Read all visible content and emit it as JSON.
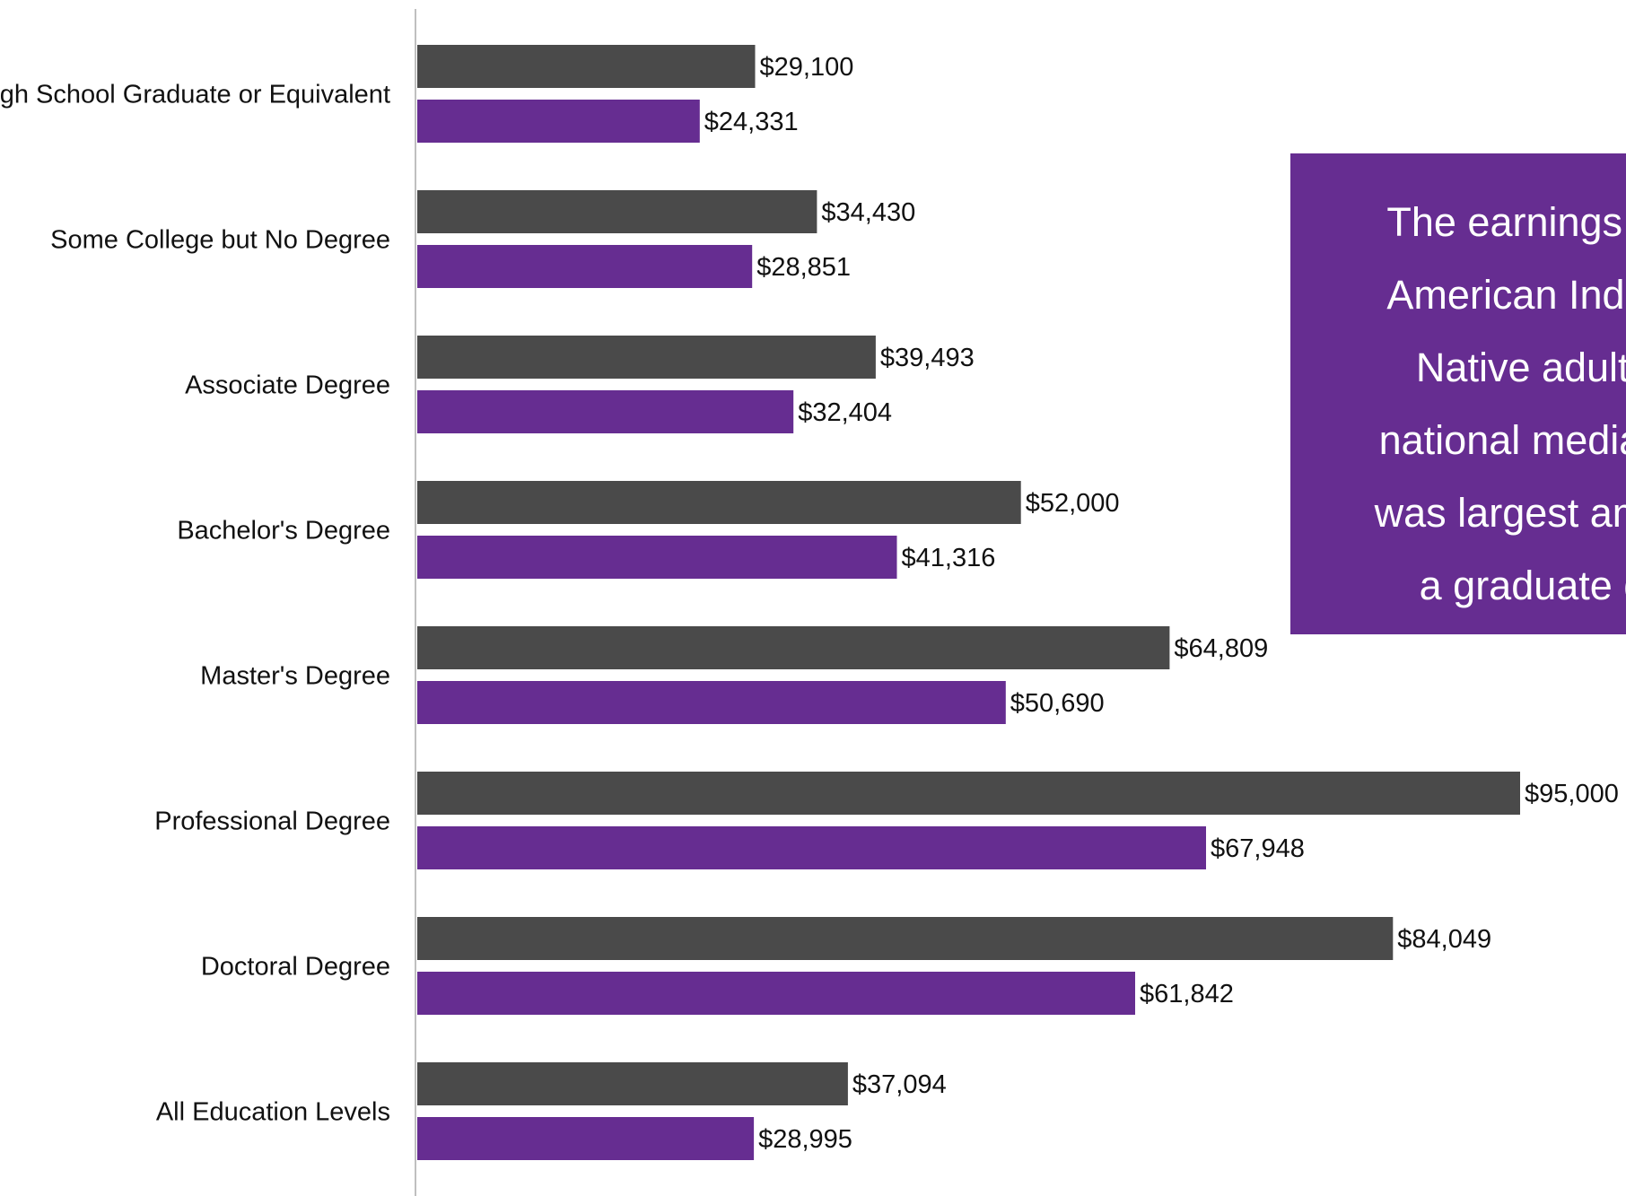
{
  "colors": {
    "series_national": "#4a4a4a",
    "series_aian": "#662d91",
    "axis": "#bfbfbf",
    "callout_bg": "#662d91",
    "callout_text": "#ffffff"
  },
  "chart_data": {
    "type": "bar",
    "orientation": "horizontal",
    "categories": [
      "High School Graduate or Equivalent",
      "Some College but No Degree",
      "Associate Degree",
      "Bachelor's Degree",
      "Master's Degree",
      "Professional Degree",
      "Doctoral Degree",
      "All Education Levels"
    ],
    "series": [
      {
        "values": [
          29100,
          34430,
          39493,
          52000,
          64809,
          95000,
          84049,
          37094
        ],
        "labels": [
          "$29,100",
          "$34,430",
          "$39,493",
          "$52,000",
          "$64,809",
          "$95,000",
          "$84,049",
          "$37,094"
        ]
      },
      {
        "values": [
          24331,
          28851,
          32404,
          41316,
          50690,
          67948,
          61842,
          28995
        ],
        "labels": [
          "$24,331",
          "$28,851",
          "$32,404",
          "$41,316",
          "$50,690",
          "$67,948",
          "$61,842",
          "$28,995"
        ]
      }
    ],
    "xlim": [
      0,
      100000
    ],
    "grid": false,
    "legend": "none"
  },
  "callout": {
    "lines": [
      "The earnings ga",
      "American Indian",
      "Native adults",
      "national median f",
      "was largest amon",
      "a graduate d"
    ]
  }
}
